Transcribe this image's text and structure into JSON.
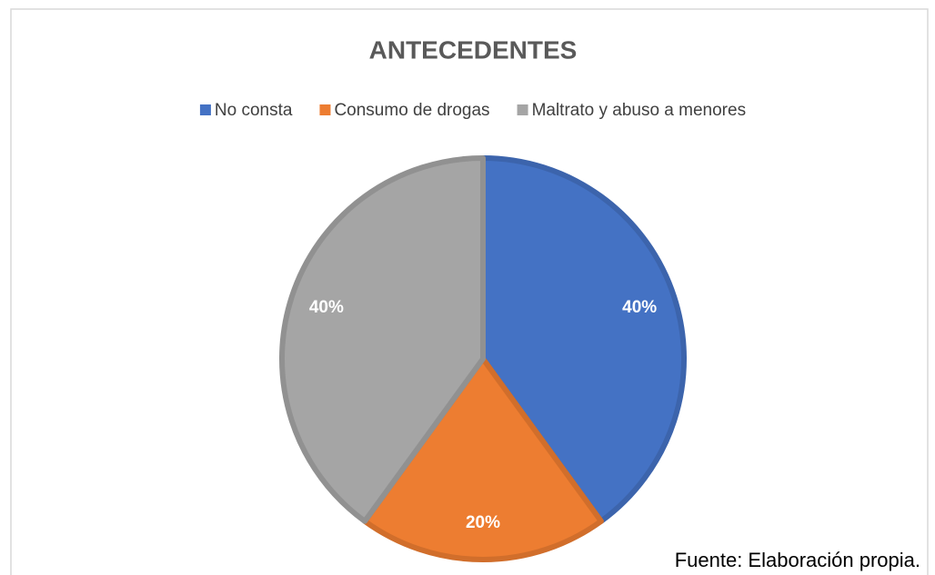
{
  "chart_data": {
    "type": "pie",
    "title": "ANTECEDENTES",
    "categories": [
      "No consta",
      "Consumo de drogas",
      "Maltrato y abuso a menores"
    ],
    "values": [
      40,
      20,
      40
    ],
    "value_labels": [
      "40%",
      "20%",
      "40%"
    ],
    "colors": [
      "#4472c4",
      "#ed7d31",
      "#a5a5a5"
    ],
    "legend": "top",
    "source": "Fuente: Elaboración propia."
  }
}
